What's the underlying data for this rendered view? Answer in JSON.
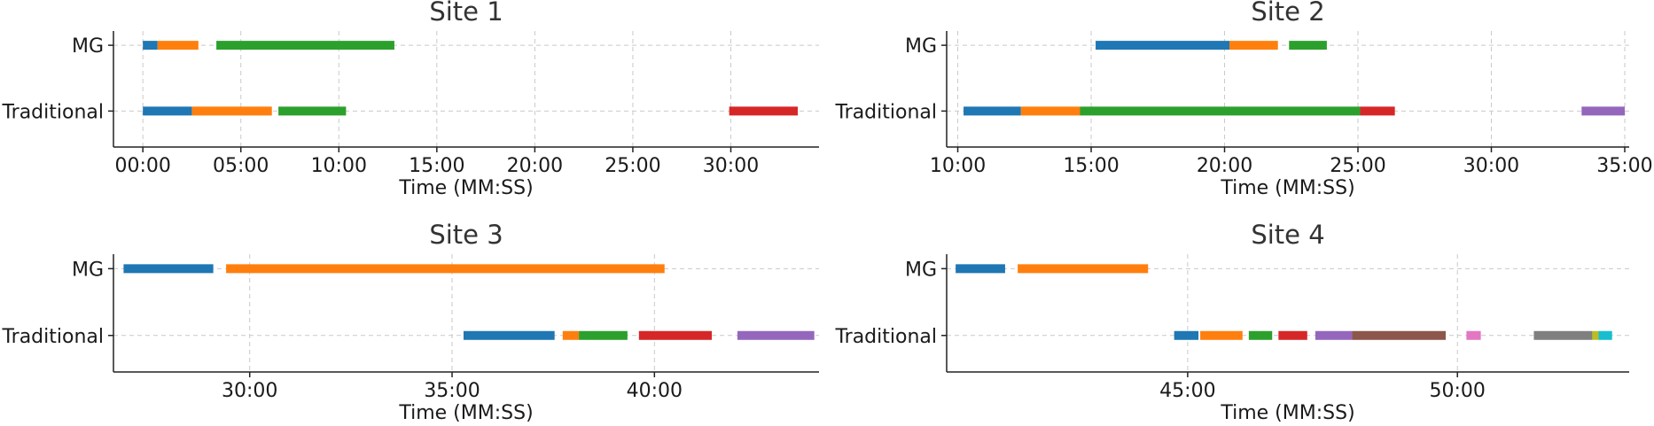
{
  "palette": [
    "#1f77b4",
    "#ff7f0e",
    "#2ca02c",
    "#d62728",
    "#9467bd",
    "#8c564b",
    "#e377c2",
    "#7f7f7f",
    "#bcbd22",
    "#17becf"
  ],
  "chart_data": [
    {
      "type": "timeline",
      "title": "Site 1",
      "xlabel": "Time (MM:SS)",
      "x_unit": "seconds",
      "xlim": [
        -90,
        2070
      ],
      "xticks": [
        0,
        300,
        600,
        900,
        1200,
        1500,
        1800
      ],
      "xtick_labels": [
        "00:00",
        "05:00",
        "10:00",
        "15:00",
        "20:00",
        "25:00",
        "30:00"
      ],
      "rows": [
        {
          "label": "MG",
          "segments": [
            {
              "start": 0,
              "end": 45,
              "color": 0
            },
            {
              "start": 45,
              "end": 170,
              "color": 1
            },
            {
              "start": 225,
              "end": 770,
              "color": 2
            }
          ]
        },
        {
          "label": "Traditional",
          "segments": [
            {
              "start": 0,
              "end": 150,
              "color": 0
            },
            {
              "start": 150,
              "end": 395,
              "color": 1
            },
            {
              "start": 415,
              "end": 622,
              "color": 2
            },
            {
              "start": 1795,
              "end": 2005,
              "color": 3
            }
          ]
        }
      ]
    },
    {
      "type": "timeline",
      "title": "Site 2",
      "xlabel": "Time (MM:SS)",
      "x_unit": "seconds",
      "xlim": [
        575,
        2110
      ],
      "xticks": [
        600,
        900,
        1200,
        1500,
        1800,
        2100
      ],
      "xtick_labels": [
        "10:00",
        "15:00",
        "20:00",
        "25:00",
        "30:00",
        "35:00"
      ],
      "rows": [
        {
          "label": "MG",
          "segments": [
            {
              "start": 910,
              "end": 1211,
              "color": 0
            },
            {
              "start": 1211,
              "end": 1320,
              "color": 1
            },
            {
              "start": 1345,
              "end": 1430,
              "color": 2
            }
          ]
        },
        {
          "label": "Traditional",
          "segments": [
            {
              "start": 613,
              "end": 742,
              "color": 0
            },
            {
              "start": 742,
              "end": 875,
              "color": 1
            },
            {
              "start": 875,
              "end": 1505,
              "color": 2
            },
            {
              "start": 1505,
              "end": 1583,
              "color": 3
            },
            {
              "start": 2003,
              "end": 2100,
              "color": 4
            }
          ]
        }
      ]
    },
    {
      "type": "timeline",
      "title": "Site 3",
      "xlabel": "Time (MM:SS)",
      "x_unit": "seconds",
      "xlim": [
        1598,
        2644
      ],
      "xticks": [
        1800,
        2100,
        2400
      ],
      "xtick_labels": [
        "30:00",
        "35:00",
        "40:00"
      ],
      "rows": [
        {
          "label": "MG",
          "segments": [
            {
              "start": 1613,
              "end": 1746,
              "color": 0
            },
            {
              "start": 1765,
              "end": 2415,
              "color": 1
            }
          ]
        },
        {
          "label": "Traditional",
          "segments": [
            {
              "start": 2117,
              "end": 2252,
              "color": 0
            },
            {
              "start": 2264,
              "end": 2288,
              "color": 1
            },
            {
              "start": 2288,
              "end": 2360,
              "color": 2
            },
            {
              "start": 2377,
              "end": 2485,
              "color": 3
            },
            {
              "start": 2523,
              "end": 2637,
              "color": 4
            }
          ]
        }
      ]
    },
    {
      "type": "timeline",
      "title": "Site 4",
      "xlabel": "Time (MM:SS)",
      "x_unit": "seconds",
      "xlim": [
        2432,
        3191
      ],
      "xticks": [
        2700,
        3000
      ],
      "xtick_labels": [
        "45:00",
        "50:00"
      ],
      "rows": [
        {
          "label": "MG",
          "segments": [
            {
              "start": 2442,
              "end": 2497,
              "color": 0
            },
            {
              "start": 2511,
              "end": 2656,
              "color": 1
            }
          ]
        },
        {
          "label": "Traditional",
          "segments": [
            {
              "start": 2685,
              "end": 2712,
              "color": 0
            },
            {
              "start": 2714,
              "end": 2761,
              "color": 1
            },
            {
              "start": 2768,
              "end": 2794,
              "color": 2
            },
            {
              "start": 2801,
              "end": 2833,
              "color": 3
            },
            {
              "start": 2842,
              "end": 2883,
              "color": 4
            },
            {
              "start": 2883,
              "end": 2987,
              "color": 5
            },
            {
              "start": 3010,
              "end": 3026,
              "color": 6
            },
            {
              "start": 3085,
              "end": 3150,
              "color": 7
            },
            {
              "start": 3150,
              "end": 3157,
              "color": 8
            },
            {
              "start": 3157,
              "end": 3172,
              "color": 9
            }
          ]
        }
      ]
    }
  ]
}
